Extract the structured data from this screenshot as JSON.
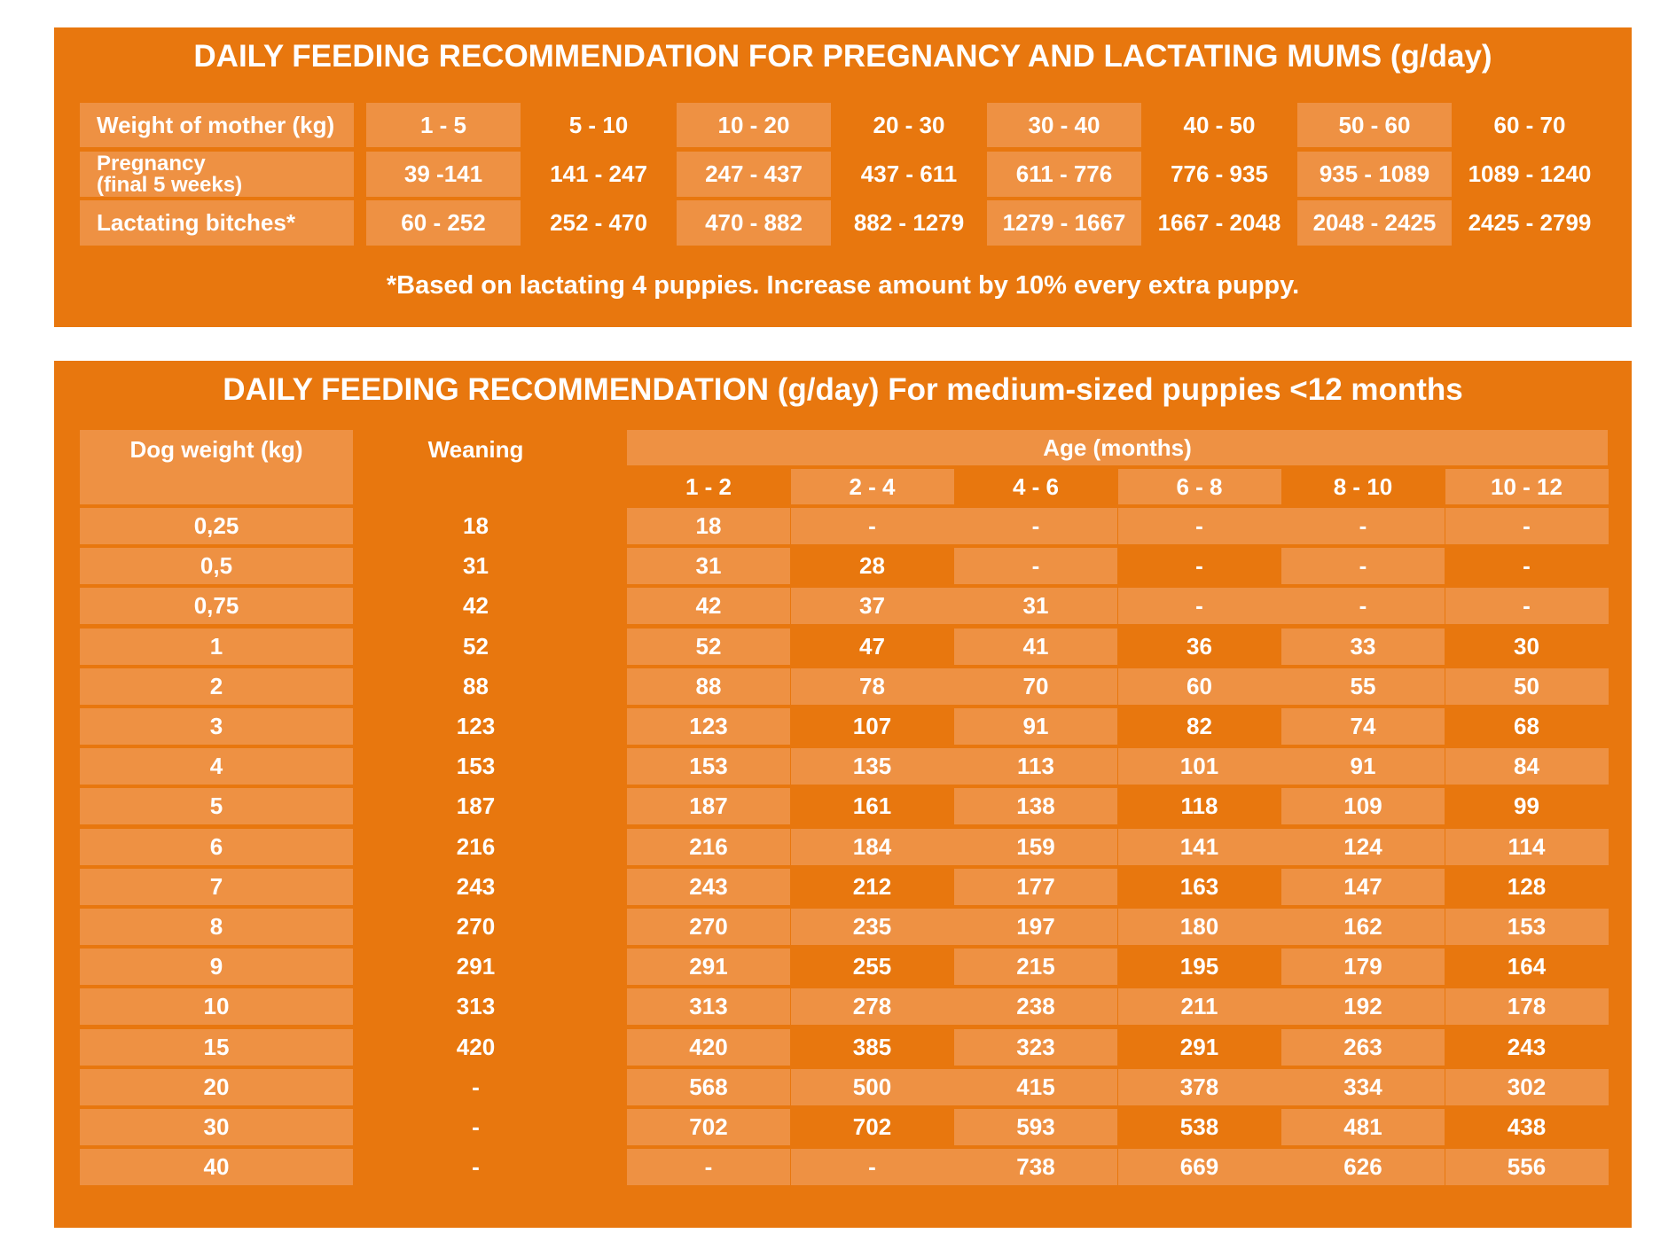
{
  "mothers": {
    "title": "DAILY FEEDING RECOMMENDATION FOR PREGNANCY AND LACTATING MUMS (g/day)",
    "header_label": "Weight of mother (kg)",
    "weights": [
      "1 - 5",
      "5 - 10",
      "10 - 20",
      "20 - 30",
      "30 - 40",
      "40 - 50",
      "50 - 60",
      "60 - 70"
    ],
    "pregnancy_label_line1": "Pregnancy",
    "pregnancy_label_line2": "(final 5 weeks)",
    "pregnancy": [
      "39 -141",
      "141 - 247",
      "247 - 437",
      "437 - 611",
      "611 - 776",
      "776 - 935",
      "935 - 1089",
      "1089 - 1240"
    ],
    "lactating_label": "Lactating bitches*",
    "lactating": [
      "60 - 252",
      "252 - 470",
      "470 - 882",
      "882 - 1279",
      "1279 - 1667",
      "1667 - 2048",
      "2048 - 2425",
      "2425 - 2799"
    ],
    "note": "*Based on lactating 4 puppies. Increase amount by 10% every extra puppy."
  },
  "puppies": {
    "title": "DAILY FEEDING RECOMMENDATION (g/day) For medium-sized puppies <12 months",
    "col_weight": "Dog weight (kg)",
    "col_weaning": "Weaning",
    "col_age": "Age (months)",
    "age_groups": [
      "1 - 2",
      "2 - 4",
      "4 - 6",
      "6 - 8",
      "8 - 10",
      "10 - 12"
    ],
    "rows": [
      {
        "weight": "0,25",
        "weaning": "18",
        "values": [
          "18",
          "-",
          "-",
          "-",
          "-",
          "-"
        ]
      },
      {
        "weight": "0,5",
        "weaning": "31",
        "values": [
          "31",
          "28",
          "-",
          "-",
          "-",
          "-"
        ]
      },
      {
        "weight": "0,75",
        "weaning": "42",
        "values": [
          "42",
          "37",
          "31",
          "-",
          "-",
          "-"
        ]
      },
      {
        "weight": "1",
        "weaning": "52",
        "values": [
          "52",
          "47",
          "41",
          "36",
          "33",
          "30"
        ]
      },
      {
        "weight": "2",
        "weaning": "88",
        "values": [
          "88",
          "78",
          "70",
          "60",
          "55",
          "50"
        ]
      },
      {
        "weight": "3",
        "weaning": "123",
        "values": [
          "123",
          "107",
          "91",
          "82",
          "74",
          "68"
        ]
      },
      {
        "weight": "4",
        "weaning": "153",
        "values": [
          "153",
          "135",
          "113",
          "101",
          "91",
          "84"
        ]
      },
      {
        "weight": "5",
        "weaning": "187",
        "values": [
          "187",
          "161",
          "138",
          "118",
          "109",
          "99"
        ]
      },
      {
        "weight": "6",
        "weaning": "216",
        "values": [
          "216",
          "184",
          "159",
          "141",
          "124",
          "114"
        ]
      },
      {
        "weight": "7",
        "weaning": "243",
        "values": [
          "243",
          "212",
          "177",
          "163",
          "147",
          "128"
        ]
      },
      {
        "weight": "8",
        "weaning": "270",
        "values": [
          "270",
          "235",
          "197",
          "180",
          "162",
          "153"
        ]
      },
      {
        "weight": "9",
        "weaning": "291",
        "values": [
          "291",
          "255",
          "215",
          "195",
          "179",
          "164"
        ]
      },
      {
        "weight": "10",
        "weaning": "313",
        "values": [
          "313",
          "278",
          "238",
          "211",
          "192",
          "178"
        ]
      },
      {
        "weight": "15",
        "weaning": "420",
        "values": [
          "420",
          "385",
          "323",
          "291",
          "263",
          "243"
        ]
      },
      {
        "weight": "20",
        "weaning": "-",
        "values": [
          "568",
          "500",
          "415",
          "378",
          "334",
          "302"
        ]
      },
      {
        "weight": "30",
        "weaning": "-",
        "values": [
          "702",
          "702",
          "593",
          "538",
          "481",
          "438"
        ]
      },
      {
        "weight": "40",
        "weaning": "-",
        "values": [
          "-",
          "-",
          "738",
          "669",
          "626",
          "556"
        ]
      }
    ]
  },
  "colors": {
    "panel": "#e8770e",
    "cell_light": "#ee9143",
    "text": "#ffffff"
  }
}
